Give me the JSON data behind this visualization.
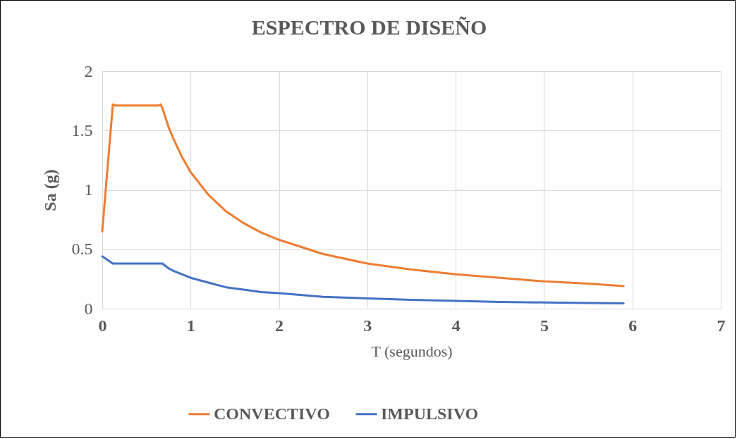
{
  "chart_data": {
    "type": "line",
    "title": "ESPECTRO DE DISEÑO",
    "xlabel": "T (segundos)",
    "ylabel": "Sa (g)",
    "xlim": [
      0,
      7
    ],
    "xticks": [
      0,
      1,
      2,
      3,
      4,
      5,
      6,
      7
    ],
    "ylim": [
      0,
      2
    ],
    "yticks": [
      0,
      0.5,
      1,
      1.5,
      2
    ],
    "grid": true,
    "legend": "bottom",
    "series": [
      {
        "name": "CONVECTIVO",
        "color": "#ed7d31",
        "x": [
          0,
          0.12,
          0.15,
          0.3,
          0.5,
          0.64,
          0.66,
          0.68,
          0.75,
          0.8,
          0.9,
          1,
          1.2,
          1.4,
          1.6,
          1.8,
          2,
          2.5,
          3,
          3.5,
          4,
          4.5,
          5,
          5.5,
          5.9
        ],
        "values": [
          0.65,
          1.72,
          1.71,
          1.71,
          1.71,
          1.71,
          1.72,
          1.69,
          1.53,
          1.44,
          1.28,
          1.15,
          0.96,
          0.82,
          0.72,
          0.64,
          0.58,
          0.46,
          0.38,
          0.33,
          0.29,
          0.26,
          0.23,
          0.21,
          0.19
        ]
      },
      {
        "name": "IMPULSIVO",
        "color": "#4472c4",
        "x": [
          0,
          0.12,
          0.3,
          0.5,
          0.68,
          0.75,
          0.8,
          0.9,
          1,
          1.2,
          1.4,
          1.6,
          1.8,
          2,
          2.5,
          3,
          3.5,
          4,
          4.5,
          5,
          5.5,
          5.9
        ],
        "values": [
          0.44,
          0.38,
          0.38,
          0.38,
          0.38,
          0.34,
          0.32,
          0.29,
          0.26,
          0.22,
          0.18,
          0.16,
          0.14,
          0.13,
          0.1,
          0.086,
          0.074,
          0.065,
          0.057,
          0.052,
          0.047,
          0.044
        ]
      }
    ]
  }
}
